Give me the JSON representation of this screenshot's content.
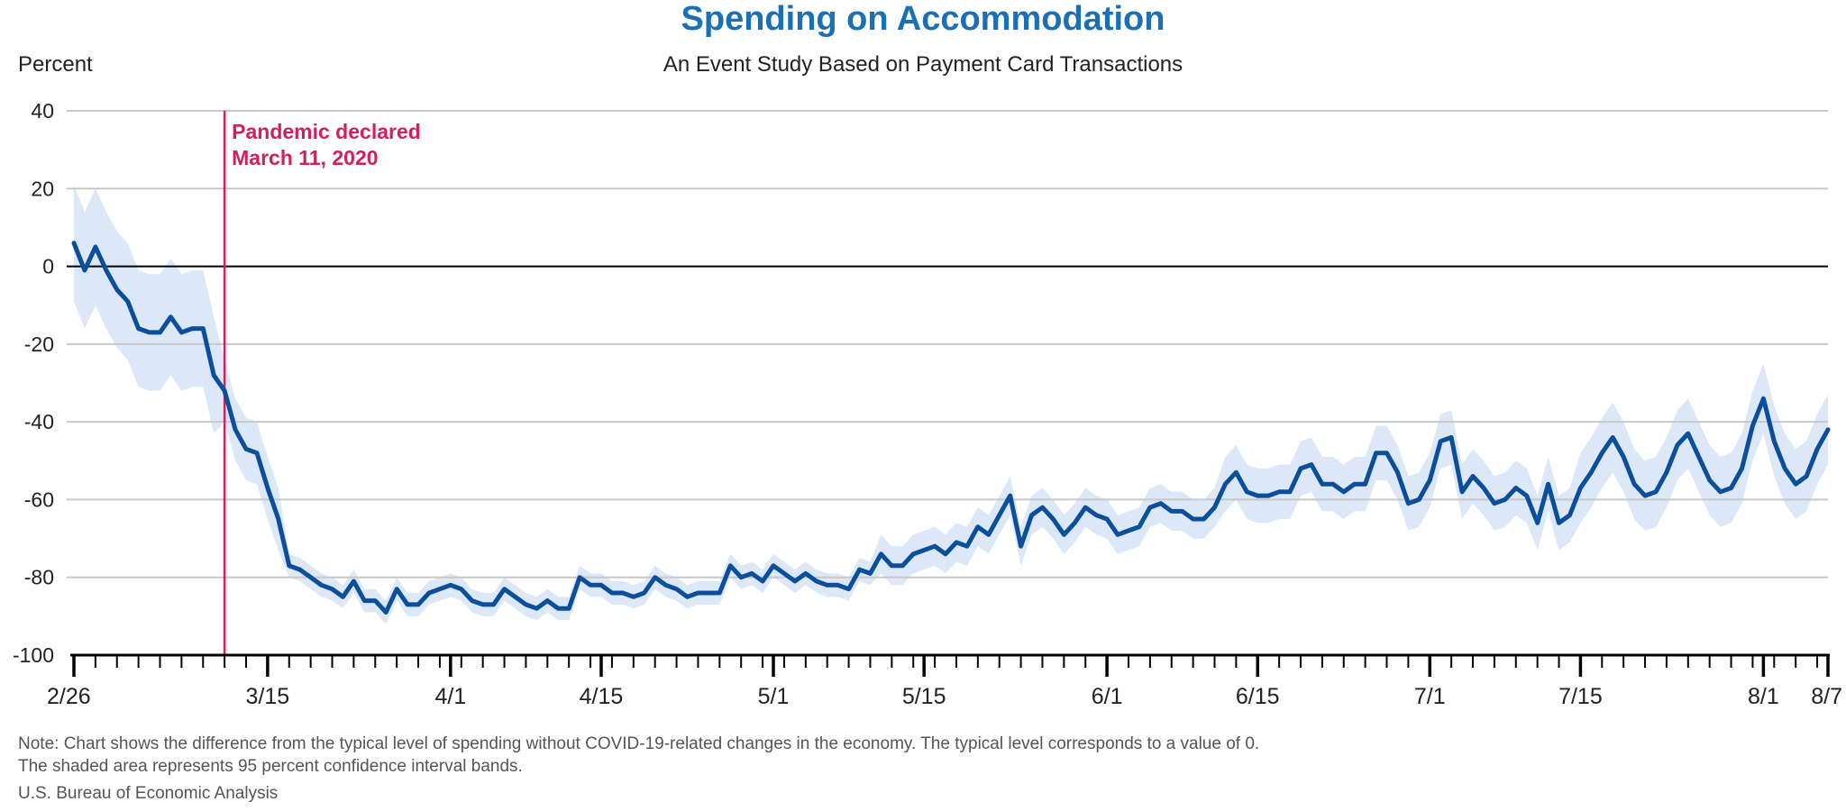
{
  "header": {
    "title": "Spending on Accommodation",
    "subtitle": "An Event Study Based on Payment Card Transactions",
    "unit_label": "Percent"
  },
  "footer": {
    "note_line1": "Note: Chart shows the difference from the typical level of spending without COVID-19-related changes in the economy. The typical level corresponds to a value of 0.",
    "note_line2": "The shaded area represents 95 percent confidence interval bands.",
    "source": "U.S. Bureau of Economic Analysis"
  },
  "colors": {
    "title": "#1a6fb5",
    "line": "#0b4f9c",
    "band": "#dce8f7",
    "annotation": "#d41f5b",
    "grid": "#c8c8c8"
  },
  "chart_data": {
    "type": "line",
    "title": "Spending on Accommodation",
    "subtitle": "An Event Study Based on Payment Card Transactions",
    "ylabel": "Percent",
    "ylim": [
      -100,
      40
    ],
    "yticks": [
      40,
      20,
      0,
      -20,
      -40,
      -60,
      -80,
      -100
    ],
    "xlim": [
      "2020-02-26",
      "2020-08-07"
    ],
    "x_tick_labels": [
      {
        "date": "2020-02-26",
        "label": "2/26"
      },
      {
        "date": "2020-03-15",
        "label": "3/15"
      },
      {
        "date": "2020-04-01",
        "label": "4/1"
      },
      {
        "date": "2020-04-15",
        "label": "4/15"
      },
      {
        "date": "2020-05-01",
        "label": "5/1"
      },
      {
        "date": "2020-05-15",
        "label": "5/15"
      },
      {
        "date": "2020-06-01",
        "label": "6/1"
      },
      {
        "date": "2020-06-15",
        "label": "6/15"
      },
      {
        "date": "2020-07-01",
        "label": "7/1"
      },
      {
        "date": "2020-07-15",
        "label": "7/15"
      },
      {
        "date": "2020-08-01",
        "label": "8/1"
      },
      {
        "date": "2020-08-07",
        "label": "8/7"
      }
    ],
    "grid": true,
    "annotation": {
      "date": "2020-03-11",
      "text_line1": "Pandemic declared",
      "text_line2": "March 11, 2020"
    },
    "series": [
      {
        "values": [
          [
            "2020-02-26",
            6
          ],
          [
            "2020-02-27",
            -1
          ],
          [
            "2020-02-28",
            5
          ],
          [
            "2020-02-29",
            -1
          ],
          [
            "2020-03-01",
            -6
          ],
          [
            "2020-03-02",
            -9
          ],
          [
            "2020-03-03",
            -16
          ],
          [
            "2020-03-04",
            -17
          ],
          [
            "2020-03-05",
            -17
          ],
          [
            "2020-03-06",
            -13
          ],
          [
            "2020-03-07",
            -17
          ],
          [
            "2020-03-08",
            -16
          ],
          [
            "2020-03-09",
            -16
          ],
          [
            "2020-03-10",
            -28
          ],
          [
            "2020-03-11",
            -32
          ],
          [
            "2020-03-12",
            -42
          ],
          [
            "2020-03-13",
            -47
          ],
          [
            "2020-03-14",
            -48
          ],
          [
            "2020-03-15",
            -57
          ],
          [
            "2020-03-16",
            -65
          ],
          [
            "2020-03-17",
            -77
          ],
          [
            "2020-03-18",
            -78
          ],
          [
            "2020-03-19",
            -80
          ],
          [
            "2020-03-20",
            -82
          ],
          [
            "2020-03-21",
            -83
          ],
          [
            "2020-03-22",
            -85
          ],
          [
            "2020-03-23",
            -81
          ],
          [
            "2020-03-24",
            -86
          ],
          [
            "2020-03-25",
            -86
          ],
          [
            "2020-03-26",
            -89
          ],
          [
            "2020-03-27",
            -83
          ],
          [
            "2020-03-28",
            -87
          ],
          [
            "2020-03-29",
            -87
          ],
          [
            "2020-03-30",
            -84
          ],
          [
            "2020-03-31",
            -83
          ],
          [
            "2020-04-01",
            -82
          ],
          [
            "2020-04-02",
            -83
          ],
          [
            "2020-04-03",
            -86
          ],
          [
            "2020-04-04",
            -87
          ],
          [
            "2020-04-05",
            -87
          ],
          [
            "2020-04-06",
            -83
          ],
          [
            "2020-04-07",
            -85
          ],
          [
            "2020-04-08",
            -87
          ],
          [
            "2020-04-09",
            -88
          ],
          [
            "2020-04-10",
            -86
          ],
          [
            "2020-04-11",
            -88
          ],
          [
            "2020-04-12",
            -88
          ],
          [
            "2020-04-13",
            -80
          ],
          [
            "2020-04-14",
            -82
          ],
          [
            "2020-04-15",
            -82
          ],
          [
            "2020-04-16",
            -84
          ],
          [
            "2020-04-17",
            -84
          ],
          [
            "2020-04-18",
            -85
          ],
          [
            "2020-04-19",
            -84
          ],
          [
            "2020-04-20",
            -80
          ],
          [
            "2020-04-21",
            -82
          ],
          [
            "2020-04-22",
            -83
          ],
          [
            "2020-04-23",
            -85
          ],
          [
            "2020-04-24",
            -84
          ],
          [
            "2020-04-25",
            -84
          ],
          [
            "2020-04-26",
            -84
          ],
          [
            "2020-04-27",
            -77
          ],
          [
            "2020-04-28",
            -80
          ],
          [
            "2020-04-29",
            -79
          ],
          [
            "2020-04-30",
            -81
          ],
          [
            "2020-05-01",
            -77
          ],
          [
            "2020-05-02",
            -79
          ],
          [
            "2020-05-03",
            -81
          ],
          [
            "2020-05-04",
            -79
          ],
          [
            "2020-05-05",
            -81
          ],
          [
            "2020-05-06",
            -82
          ],
          [
            "2020-05-07",
            -82
          ],
          [
            "2020-05-08",
            -83
          ],
          [
            "2020-05-09",
            -78
          ],
          [
            "2020-05-10",
            -79
          ],
          [
            "2020-05-11",
            -74
          ],
          [
            "2020-05-12",
            -77
          ],
          [
            "2020-05-13",
            -77
          ],
          [
            "2020-05-14",
            -74
          ],
          [
            "2020-05-15",
            -73
          ],
          [
            "2020-05-16",
            -72
          ],
          [
            "2020-05-17",
            -74
          ],
          [
            "2020-05-18",
            -71
          ],
          [
            "2020-05-19",
            -72
          ],
          [
            "2020-05-20",
            -67
          ],
          [
            "2020-05-21",
            -69
          ],
          [
            "2020-05-22",
            -64
          ],
          [
            "2020-05-23",
            -59
          ],
          [
            "2020-05-24",
            -72
          ],
          [
            "2020-05-25",
            -64
          ],
          [
            "2020-05-26",
            -62
          ],
          [
            "2020-05-27",
            -65
          ],
          [
            "2020-05-28",
            -69
          ],
          [
            "2020-05-29",
            -66
          ],
          [
            "2020-05-30",
            -62
          ],
          [
            "2020-05-31",
            -64
          ],
          [
            "2020-06-01",
            -65
          ],
          [
            "2020-06-02",
            -69
          ],
          [
            "2020-06-03",
            -68
          ],
          [
            "2020-06-04",
            -67
          ],
          [
            "2020-06-05",
            -62
          ],
          [
            "2020-06-06",
            -61
          ],
          [
            "2020-06-07",
            -63
          ],
          [
            "2020-06-08",
            -63
          ],
          [
            "2020-06-09",
            -65
          ],
          [
            "2020-06-10",
            -65
          ],
          [
            "2020-06-11",
            -62
          ],
          [
            "2020-06-12",
            -56
          ],
          [
            "2020-06-13",
            -53
          ],
          [
            "2020-06-14",
            -58
          ],
          [
            "2020-06-15",
            -59
          ],
          [
            "2020-06-16",
            -59
          ],
          [
            "2020-06-17",
            -58
          ],
          [
            "2020-06-18",
            -58
          ],
          [
            "2020-06-19",
            -52
          ],
          [
            "2020-06-20",
            -51
          ],
          [
            "2020-06-21",
            -56
          ],
          [
            "2020-06-22",
            -56
          ],
          [
            "2020-06-23",
            -58
          ],
          [
            "2020-06-24",
            -56
          ],
          [
            "2020-06-25",
            -56
          ],
          [
            "2020-06-26",
            -48
          ],
          [
            "2020-06-27",
            -48
          ],
          [
            "2020-06-28",
            -53
          ],
          [
            "2020-06-29",
            -61
          ],
          [
            "2020-06-30",
            -60
          ],
          [
            "2020-07-01",
            -55
          ],
          [
            "2020-07-02",
            -45
          ],
          [
            "2020-07-03",
            -44
          ],
          [
            "2020-07-04",
            -58
          ],
          [
            "2020-07-05",
            -54
          ],
          [
            "2020-07-06",
            -57
          ],
          [
            "2020-07-07",
            -61
          ],
          [
            "2020-07-08",
            -60
          ],
          [
            "2020-07-09",
            -57
          ],
          [
            "2020-07-10",
            -59
          ],
          [
            "2020-07-11",
            -66
          ],
          [
            "2020-07-12",
            -56
          ],
          [
            "2020-07-13",
            -66
          ],
          [
            "2020-07-14",
            -64
          ],
          [
            "2020-07-15",
            -57
          ],
          [
            "2020-07-16",
            -53
          ],
          [
            "2020-07-17",
            -48
          ],
          [
            "2020-07-18",
            -44
          ],
          [
            "2020-07-19",
            -49
          ],
          [
            "2020-07-20",
            -56
          ],
          [
            "2020-07-21",
            -59
          ],
          [
            "2020-07-22",
            -58
          ],
          [
            "2020-07-23",
            -53
          ],
          [
            "2020-07-24",
            -46
          ],
          [
            "2020-07-25",
            -43
          ],
          [
            "2020-07-26",
            -49
          ],
          [
            "2020-07-27",
            -55
          ],
          [
            "2020-07-28",
            -58
          ],
          [
            "2020-07-29",
            -57
          ],
          [
            "2020-07-30",
            -52
          ],
          [
            "2020-07-31",
            -41
          ],
          [
            "2020-08-01",
            -34
          ],
          [
            "2020-08-02",
            -45
          ],
          [
            "2020-08-03",
            -52
          ],
          [
            "2020-08-04",
            -56
          ],
          [
            "2020-08-05",
            -54
          ],
          [
            "2020-08-06",
            -47
          ],
          [
            "2020-08-07",
            -42
          ]
        ],
        "ci_halfwidth_by_period": [
          {
            "from": "2020-02-26",
            "to": "2020-03-10",
            "halfwidth": 15
          },
          {
            "from": "2020-03-11",
            "to": "2020-03-16",
            "halfwidth": 8
          },
          {
            "from": "2020-03-17",
            "to": "2020-05-10",
            "halfwidth": 3
          },
          {
            "from": "2020-05-11",
            "to": "2020-06-11",
            "halfwidth": 5
          },
          {
            "from": "2020-06-12",
            "to": "2020-07-14",
            "halfwidth": 7
          },
          {
            "from": "2020-07-15",
            "to": "2020-08-07",
            "halfwidth": 9
          }
        ]
      }
    ]
  }
}
